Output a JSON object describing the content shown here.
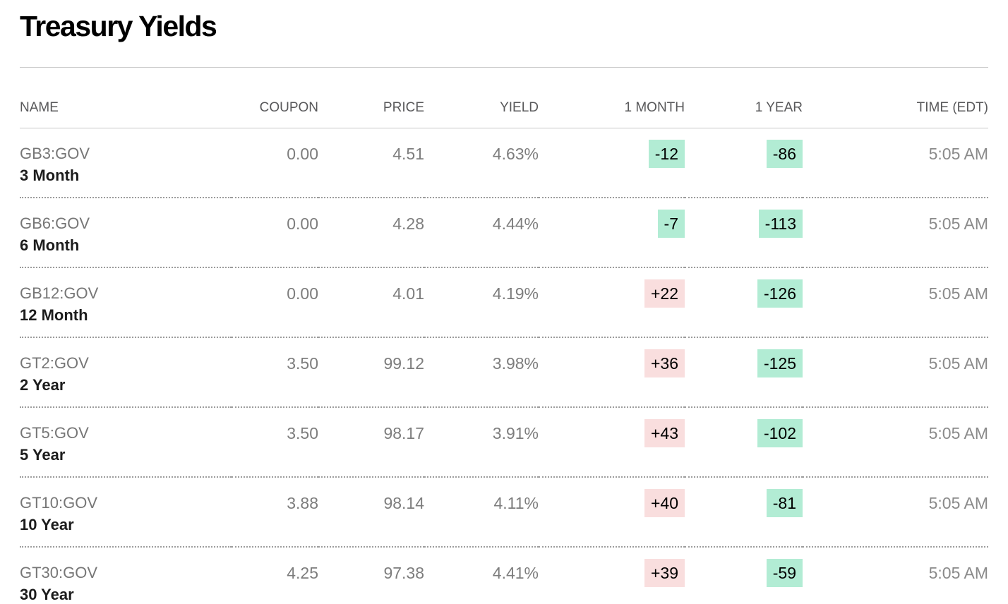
{
  "page": {
    "title": "Treasury Yields",
    "colors": {
      "up_change_bg": "#f9dede",
      "down_change_bg": "#b2ecd4"
    }
  },
  "table": {
    "columns": [
      "NAME",
      "COUPON",
      "PRICE",
      "YIELD",
      "1 MONTH",
      "1 YEAR",
      "TIME (EDT)"
    ],
    "rows": [
      {
        "ticker": "GB3:GOV",
        "name": "3 Month",
        "coupon": "0.00",
        "price": "4.51",
        "yield": "4.63%",
        "one_month": "-12",
        "one_month_dir": "down",
        "one_year": "-86",
        "one_year_dir": "down",
        "time": "5:05 AM"
      },
      {
        "ticker": "GB6:GOV",
        "name": "6 Month",
        "coupon": "0.00",
        "price": "4.28",
        "yield": "4.44%",
        "one_month": "-7",
        "one_month_dir": "down",
        "one_year": "-113",
        "one_year_dir": "down",
        "time": "5:05 AM"
      },
      {
        "ticker": "GB12:GOV",
        "name": "12 Month",
        "coupon": "0.00",
        "price": "4.01",
        "yield": "4.19%",
        "one_month": "+22",
        "one_month_dir": "up",
        "one_year": "-126",
        "one_year_dir": "down",
        "time": "5:05 AM"
      },
      {
        "ticker": "GT2:GOV",
        "name": "2 Year",
        "coupon": "3.50",
        "price": "99.12",
        "yield": "3.98%",
        "one_month": "+36",
        "one_month_dir": "up",
        "one_year": "-125",
        "one_year_dir": "down",
        "time": "5:05 AM"
      },
      {
        "ticker": "GT5:GOV",
        "name": "5 Year",
        "coupon": "3.50",
        "price": "98.17",
        "yield": "3.91%",
        "one_month": "+43",
        "one_month_dir": "up",
        "one_year": "-102",
        "one_year_dir": "down",
        "time": "5:05 AM"
      },
      {
        "ticker": "GT10:GOV",
        "name": "10 Year",
        "coupon": "3.88",
        "price": "98.14",
        "yield": "4.11%",
        "one_month": "+40",
        "one_month_dir": "up",
        "one_year": "-81",
        "one_year_dir": "down",
        "time": "5:05 AM"
      },
      {
        "ticker": "GT30:GOV",
        "name": "30 Year",
        "coupon": "4.25",
        "price": "97.38",
        "yield": "4.41%",
        "one_month": "+39",
        "one_month_dir": "up",
        "one_year": "-59",
        "one_year_dir": "down",
        "time": "5:05 AM"
      }
    ]
  }
}
